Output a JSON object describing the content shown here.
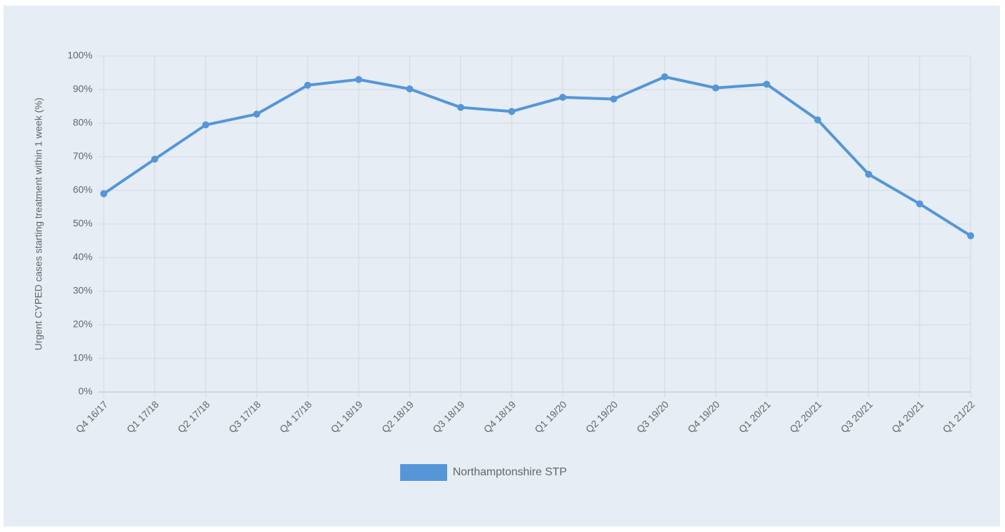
{
  "chart_data": {
    "type": "line",
    "y_axis_label": "Urgent CYPED cases starting treatment within 1 week (%)",
    "categories": [
      "Q4 16/17",
      "Q1 17/18",
      "Q2 17/18",
      "Q3 17/18",
      "Q4 17/18",
      "Q1 18/19",
      "Q2 18/19",
      "Q3 18/19",
      "Q4 18/19",
      "Q1 19/20",
      "Q2 19/20",
      "Q3 19/20",
      "Q4 19/20",
      "Q1 20/21",
      "Q2 20/21",
      "Q3 20/21",
      "Q4 20/21",
      "Q1 21/22"
    ],
    "series": [
      {
        "name": "Northamptonshire STP",
        "color": "#5596d8",
        "values": [
          59,
          69.3,
          79.5,
          82.7,
          91.3,
          93,
          90.2,
          84.7,
          83.5,
          87.7,
          87.2,
          93.8,
          90.5,
          91.6,
          81,
          64.8,
          56,
          46.5
        ]
      }
    ],
    "ylim": [
      0,
      100
    ],
    "yticks": [
      {
        "value": 0,
        "label": "0%"
      },
      {
        "value": 10,
        "label": "10%"
      },
      {
        "value": 20,
        "label": "20%"
      },
      {
        "value": 30,
        "label": "30%"
      },
      {
        "value": 40,
        "label": "40%"
      },
      {
        "value": 50,
        "label": "50%"
      },
      {
        "value": 60,
        "label": "60%"
      },
      {
        "value": 70,
        "label": "70%"
      },
      {
        "value": 80,
        "label": "80%"
      },
      {
        "value": 90,
        "label": "90%"
      },
      {
        "value": 100,
        "label": "100%"
      }
    ],
    "grid": true,
    "legend_position": "bottom"
  }
}
